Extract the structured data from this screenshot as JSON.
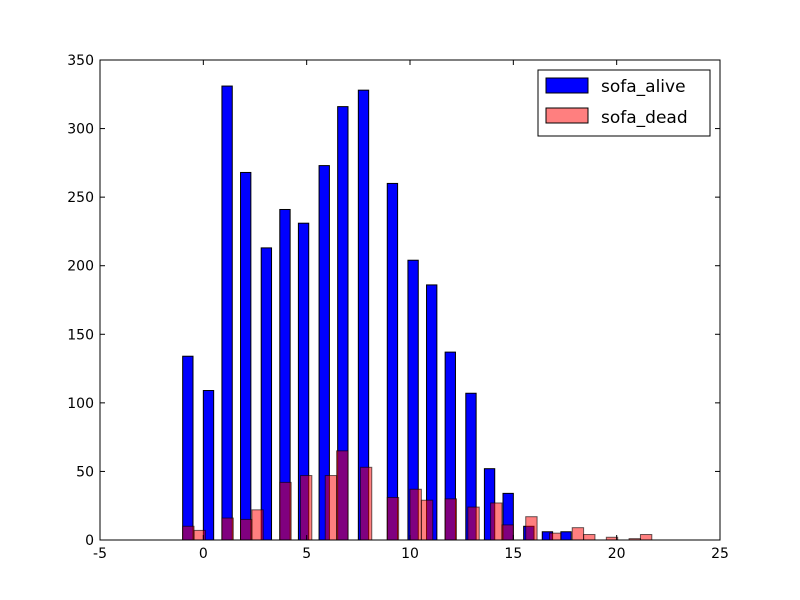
{
  "chart_data": {
    "type": "bar",
    "title": "",
    "xlabel": "",
    "ylabel": "",
    "xlim": [
      -5,
      25
    ],
    "ylim": [
      0,
      350
    ],
    "xticks": [
      -5,
      0,
      5,
      10,
      15,
      20,
      25
    ],
    "yticks": [
      0,
      50,
      100,
      150,
      200,
      250,
      300,
      350
    ],
    "grid": false,
    "legend": "top-right",
    "series": [
      {
        "name": "sofa_alive",
        "color": "#0000ff",
        "opacity": 1,
        "bins": [
          {
            "x0": -1.0,
            "x1": -0.5,
            "value": 134
          },
          {
            "x0": 0.0,
            "x1": 0.5,
            "value": 109
          },
          {
            "x0": 0.9,
            "x1": 1.4,
            "value": 331
          },
          {
            "x0": 1.8,
            "x1": 2.3,
            "value": 268
          },
          {
            "x0": 2.8,
            "x1": 3.3,
            "value": 213
          },
          {
            "x0": 3.7,
            "x1": 4.2,
            "value": 241
          },
          {
            "x0": 4.6,
            "x1": 5.1,
            "value": 231
          },
          {
            "x0": 5.6,
            "x1": 6.1,
            "value": 273
          },
          {
            "x0": 6.5,
            "x1": 7.0,
            "value": 316
          },
          {
            "x0": 7.5,
            "x1": 8.0,
            "value": 328
          },
          {
            "x0": 8.9,
            "x1": 9.4,
            "value": 260
          },
          {
            "x0": 9.9,
            "x1": 10.4,
            "value": 204
          },
          {
            "x0": 10.8,
            "x1": 11.3,
            "value": 186
          },
          {
            "x0": 11.7,
            "x1": 12.2,
            "value": 137
          },
          {
            "x0": 12.7,
            "x1": 13.2,
            "value": 107
          },
          {
            "x0": 13.6,
            "x1": 14.1,
            "value": 52
          },
          {
            "x0": 14.5,
            "x1": 15.0,
            "value": 34
          },
          {
            "x0": 15.5,
            "x1": 16.0,
            "value": 10
          },
          {
            "x0": 16.4,
            "x1": 16.9,
            "value": 6
          },
          {
            "x0": 17.3,
            "x1": 17.8,
            "value": 6
          }
        ]
      },
      {
        "name": "sofa_dead",
        "color": "#ff0000",
        "opacity": 0.5,
        "bins": [
          {
            "x0": -1.0,
            "x1": -0.45,
            "value": 10
          },
          {
            "x0": -0.45,
            "x1": 0.1,
            "value": 7
          },
          {
            "x0": 0.9,
            "x1": 1.45,
            "value": 16
          },
          {
            "x0": 1.8,
            "x1": 2.35,
            "value": 15
          },
          {
            "x0": 2.35,
            "x1": 2.9,
            "value": 22
          },
          {
            "x0": 3.7,
            "x1": 4.25,
            "value": 42
          },
          {
            "x0": 4.7,
            "x1": 5.25,
            "value": 47
          },
          {
            "x0": 5.9,
            "x1": 6.45,
            "value": 47
          },
          {
            "x0": 6.45,
            "x1": 7.0,
            "value": 65
          },
          {
            "x0": 7.6,
            "x1": 8.15,
            "value": 53
          },
          {
            "x0": 8.9,
            "x1": 9.45,
            "value": 31
          },
          {
            "x0": 10.0,
            "x1": 10.55,
            "value": 37
          },
          {
            "x0": 10.55,
            "x1": 11.1,
            "value": 29
          },
          {
            "x0": 11.7,
            "x1": 12.25,
            "value": 30
          },
          {
            "x0": 12.8,
            "x1": 13.35,
            "value": 24
          },
          {
            "x0": 13.9,
            "x1": 14.45,
            "value": 27
          },
          {
            "x0": 14.45,
            "x1": 15.0,
            "value": 11
          },
          {
            "x0": 15.6,
            "x1": 16.15,
            "value": 17
          },
          {
            "x0": 16.75,
            "x1": 17.3,
            "value": 5
          },
          {
            "x0": 17.85,
            "x1": 18.4,
            "value": 9
          },
          {
            "x0": 18.4,
            "x1": 18.95,
            "value": 4
          },
          {
            "x0": 19.5,
            "x1": 20.05,
            "value": 2
          },
          {
            "x0": 20.6,
            "x1": 21.15,
            "value": 1
          },
          {
            "x0": 21.15,
            "x1": 21.7,
            "value": 4
          }
        ]
      }
    ]
  }
}
